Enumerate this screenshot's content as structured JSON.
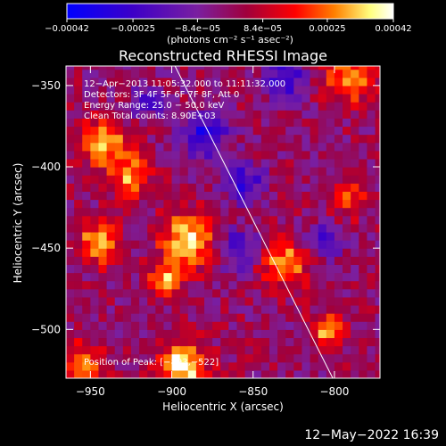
{
  "chart_data": {
    "type": "heatmap",
    "title": "Reconstructed RHESSI Image",
    "xlabel": "Heliocentric X (arcsec)",
    "ylabel": "Heliocentric Y (arcsec)",
    "xlim": [
      -965,
      -772
    ],
    "ylim": [
      -530,
      -338
    ],
    "x_ticks": [
      -950,
      -900,
      -850,
      -800
    ],
    "y_ticks": [
      -500,
      -450,
      -400,
      -350
    ],
    "x_tick_labels": [
      "−950",
      "−900",
      "−850",
      "−800"
    ],
    "y_tick_labels": [
      "−500",
      "−450",
      "−400",
      "−350"
    ],
    "colorbar": {
      "range": [
        -0.00042,
        0.00042
      ],
      "tick_values": [
        -0.00042,
        -0.00025,
        -8.4e-05,
        8.4e-05,
        0.00025,
        0.00042
      ],
      "tick_labels": [
        "−0.00042",
        "−0.00025",
        "−8.4e−05",
        "8.4e−05",
        "0.00025",
        "0.00042"
      ],
      "unit_label": "(photons cm⁻² s⁻¹ asec⁻²)",
      "colors": [
        "#0000ff",
        "#3c00c8",
        "#7a1fa0",
        "#a0003c",
        "#ff0000",
        "#ff8000",
        "#ffff80",
        "#ffffff"
      ]
    },
    "info_lines": [
      "12−Apr−2013 11:05:32.000 to 11:11:32.000",
      "Detectors: 3F 4F 5F 6F 7F 8F, Att 0",
      "Energy Range: 25.0 − 50.0 keV",
      "Clean    Total counts: 8.90E+03"
    ],
    "peak_label": "Position of Peak: [−893,−522]",
    "peak": {
      "x": -893,
      "y": -522
    },
    "limb_line": {
      "x": [
        -898,
        -801
      ],
      "y": [
        -338,
        -530
      ]
    },
    "bright_regions": [
      {
        "x": -893,
        "y": -522,
        "r": 14,
        "v": 0.00042
      },
      {
        "x": -890,
        "y": -445,
        "r": 16,
        "v": 0.0004
      },
      {
        "x": -945,
        "y": -447,
        "r": 12,
        "v": 0.00034
      },
      {
        "x": -942,
        "y": -385,
        "r": 14,
        "v": 0.00033
      },
      {
        "x": -925,
        "y": -405,
        "r": 12,
        "v": 0.0003
      },
      {
        "x": -830,
        "y": -460,
        "r": 14,
        "v": 0.0003
      },
      {
        "x": -790,
        "y": -345,
        "r": 14,
        "v": 0.00032
      },
      {
        "x": -803,
        "y": -500,
        "r": 10,
        "v": 0.00034
      },
      {
        "x": -955,
        "y": -520,
        "r": 12,
        "v": 0.00028
      },
      {
        "x": -905,
        "y": -470,
        "r": 10,
        "v": 0.0003
      },
      {
        "x": -790,
        "y": -420,
        "r": 10,
        "v": 0.00022
      },
      {
        "x": -840,
        "y": -505,
        "r": 10,
        "v": 0.00024
      }
    ],
    "negative_regions": [
      {
        "x": -880,
        "y": -380,
        "r": 14,
        "v": -0.00032
      },
      {
        "x": -855,
        "y": -410,
        "r": 12,
        "v": -0.00028
      },
      {
        "x": -830,
        "y": -345,
        "r": 12,
        "v": -0.0003
      },
      {
        "x": -860,
        "y": -450,
        "r": 12,
        "v": -0.00026
      },
      {
        "x": -805,
        "y": -445,
        "r": 10,
        "v": -0.00028
      },
      {
        "x": -840,
        "y": -505,
        "r": 10,
        "v": -0.00022
      },
      {
        "x": -915,
        "y": -360,
        "r": 10,
        "v": -0.00022
      }
    ]
  },
  "footer": {
    "timestamp": "12−May−2022 16:39"
  }
}
